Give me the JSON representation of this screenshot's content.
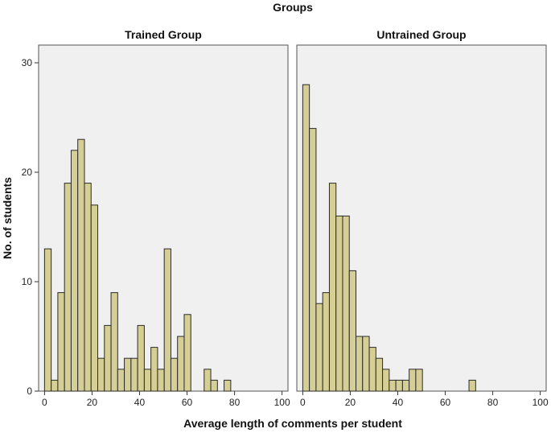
{
  "chart_data": {
    "type": "bar",
    "title": "Groups",
    "xlabel": "Average length of comments per student",
    "ylabel": "No. of students",
    "ylim": [
      0,
      30
    ],
    "xlim": [
      -2.5,
      102.5
    ],
    "bin_width": 2.8,
    "x_ticks": [
      0,
      20,
      40,
      60,
      80,
      100
    ],
    "y_ticks": [
      0,
      10,
      20,
      30
    ],
    "grid": false,
    "colors": {
      "bar_fill": "#d6cf95",
      "bar_stroke": "#2a2a2a",
      "panel_bg": "#f0f0f0",
      "panel_border": "#555555"
    },
    "panels": [
      {
        "name": "Trained Group",
        "bin_starts": [
          0,
          2.8,
          5.6,
          8.4,
          11.2,
          14,
          16.8,
          19.6,
          22.4,
          25.2,
          28,
          30.8,
          33.6,
          36.4,
          39.2,
          42,
          44.8,
          47.6,
          50.4,
          53.2,
          56,
          58.8,
          61.6,
          64.4,
          67.2,
          70,
          72.8,
          75.6,
          78.4,
          81.2,
          84,
          86.8
        ],
        "values": [
          13,
          1,
          9,
          19,
          22,
          23,
          19,
          17,
          3,
          6,
          9,
          2,
          3,
          3,
          6,
          2,
          4,
          2,
          13,
          3,
          5,
          7,
          0,
          0,
          2,
          1,
          0,
          1,
          0,
          0,
          0,
          0
        ]
      },
      {
        "name": "Untrained Group",
        "bin_starts": [
          0,
          2.8,
          5.6,
          8.4,
          11.2,
          14,
          16.8,
          19.6,
          22.4,
          25.2,
          28,
          30.8,
          33.6,
          36.4,
          39.2,
          42,
          44.8,
          47.6,
          50.4,
          53.2,
          56,
          58.8,
          61.6,
          64.4,
          67.2,
          70,
          72.8,
          75.6
        ],
        "values": [
          28,
          24,
          8,
          9,
          19,
          16,
          16,
          11,
          5,
          5,
          4,
          3,
          2,
          1,
          1,
          1,
          2,
          2,
          0,
          0,
          0,
          0,
          0,
          0,
          0,
          1,
          0,
          0
        ]
      }
    ]
  }
}
